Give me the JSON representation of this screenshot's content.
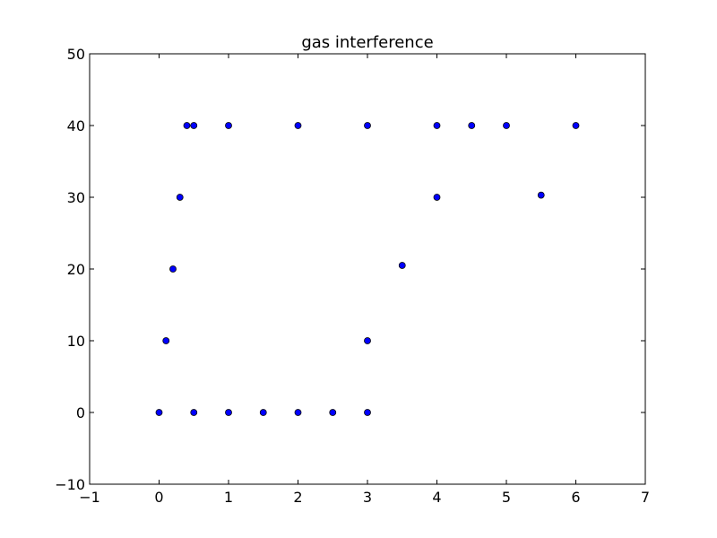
{
  "chart_data": {
    "type": "scatter",
    "title": "gas interference",
    "xlabel": "",
    "ylabel": "",
    "xlim": [
      -1,
      7
    ],
    "ylim": [
      -10,
      50
    ],
    "xticks": [
      -1,
      0,
      1,
      2,
      3,
      4,
      5,
      6,
      7
    ],
    "yticks": [
      -10,
      0,
      10,
      20,
      30,
      40,
      50
    ],
    "grid": false,
    "marker_color": "#0000ff",
    "marker_edge_color": "#000000",
    "series": [
      {
        "points": [
          {
            "x": 0,
            "y": 0
          },
          {
            "x": 0.5,
            "y": 0
          },
          {
            "x": 1,
            "y": 0
          },
          {
            "x": 1.5,
            "y": 0
          },
          {
            "x": 2,
            "y": 0
          },
          {
            "x": 2.5,
            "y": 0
          },
          {
            "x": 3,
            "y": 0
          },
          {
            "x": 0.1,
            "y": 10
          },
          {
            "x": 0.2,
            "y": 20
          },
          {
            "x": 0.3,
            "y": 30
          },
          {
            "x": 0.4,
            "y": 40
          },
          {
            "x": 0.5,
            "y": 40
          },
          {
            "x": 1,
            "y": 40
          },
          {
            "x": 2,
            "y": 40
          },
          {
            "x": 3,
            "y": 40
          },
          {
            "x": 3,
            "y": 10
          },
          {
            "x": 3.5,
            "y": 20.5
          },
          {
            "x": 4,
            "y": 30
          },
          {
            "x": 4,
            "y": 40
          },
          {
            "x": 4.5,
            "y": 40
          },
          {
            "x": 5,
            "y": 40
          },
          {
            "x": 5.5,
            "y": 30.3
          },
          {
            "x": 6,
            "y": 40
          }
        ]
      }
    ]
  }
}
